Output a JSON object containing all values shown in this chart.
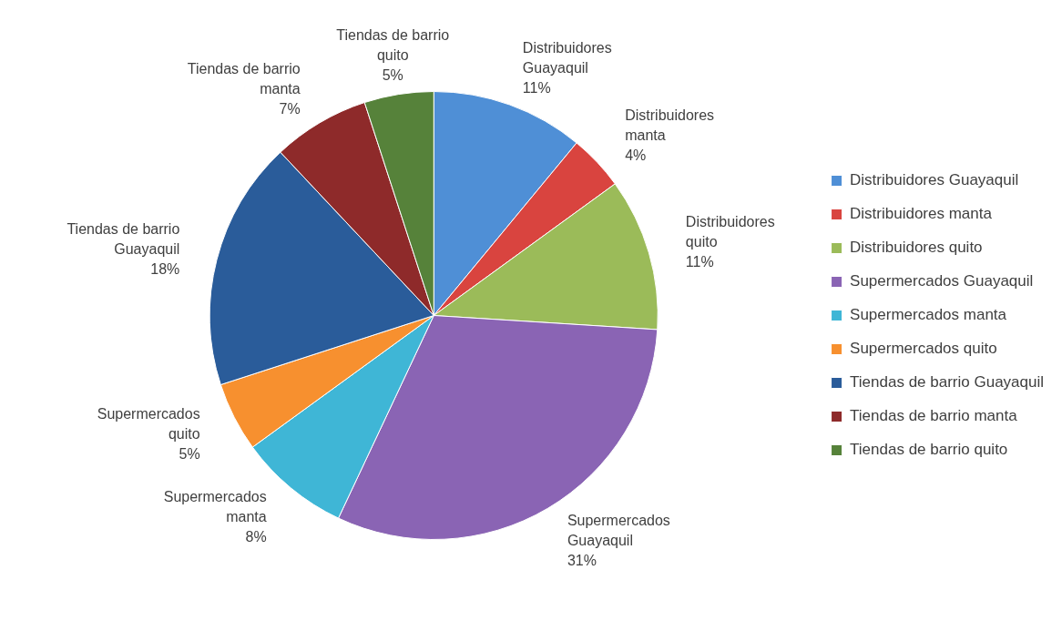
{
  "chart_data": {
    "type": "pie",
    "categories": [
      "Distribuidores Guayaquil",
      "Distribuidores manta",
      "Distribuidores quito",
      "Supermercados Guayaquil",
      "Supermercados manta",
      "Supermercados quito",
      "Tiendas de barrio Guayaquil",
      "Tiendas de barrio manta",
      "Tiendas de barrio quito"
    ],
    "values": [
      11,
      4,
      11,
      31,
      8,
      5,
      18,
      7,
      5
    ],
    "value_labels": [
      "11%",
      "4%",
      "11%",
      "31%",
      "8%",
      "5%",
      "18%",
      "7%",
      "5%"
    ],
    "colors": [
      "#4f8fd6",
      "#d9443f",
      "#9bbb59",
      "#8a64b4",
      "#3fb6d6",
      "#f7902f",
      "#2a5c9a",
      "#8e2a2a",
      "#56823a"
    ],
    "legend": "right"
  }
}
